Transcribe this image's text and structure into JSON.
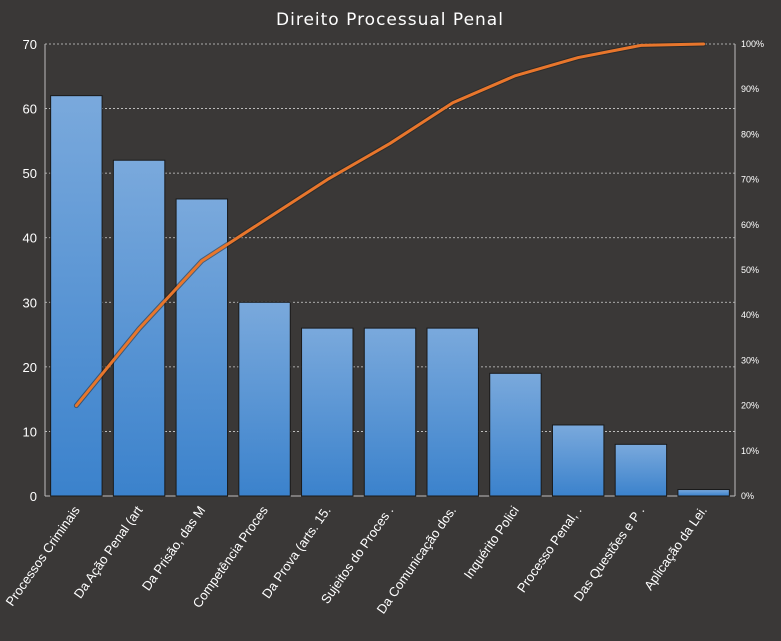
{
  "chart_data": {
    "type": "bar",
    "title": "Direito Processual Penal",
    "categories": [
      "Processos Criminais",
      "Da Ação Penal (art",
      "Da Prisão, das M",
      "Competência Proces",
      "Da Prova (arts. 15.",
      "Sujeitos do Proces .",
      "Da Comunicação dos.",
      "Inquérito Polici",
      "Processo Penal, .",
      "Das Questões e P .",
      "Aplicação da Lei."
    ],
    "values": [
      62,
      52,
      46,
      30,
      26,
      26,
      26,
      19,
      11,
      8,
      1
    ],
    "cumulative_percent": [
      20,
      37,
      52,
      61,
      70,
      78,
      87,
      93,
      97,
      99.7,
      100
    ],
    "ylim": [
      0,
      70
    ],
    "yticks": [
      0,
      10,
      20,
      30,
      40,
      50,
      60,
      70
    ],
    "y2lim": [
      0,
      100
    ],
    "y2ticks": [
      "0%",
      "10%",
      "20%",
      "30%",
      "40%",
      "50%",
      "60%",
      "70%",
      "80%",
      "90%",
      "100%"
    ],
    "grid": true,
    "colors": {
      "background": "#3a3837",
      "bar_top": "#7aa9dc",
      "bar_bottom": "#3b82cc",
      "line": "#e8762c",
      "grid": "#d0d0d0",
      "text": "#ffffff"
    }
  }
}
